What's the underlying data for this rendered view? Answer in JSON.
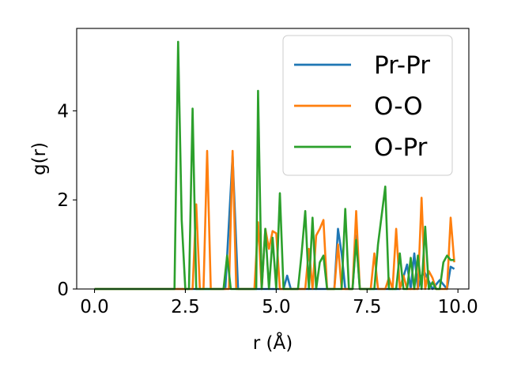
{
  "chart_data": {
    "type": "line",
    "xlabel": "r (Å)",
    "ylabel": "g(r)",
    "xlim": [
      -0.49,
      10.3
    ],
    "ylim": [
      0,
      5.85
    ],
    "xticks": [
      0.0,
      2.5,
      5.0,
      7.5,
      10.0
    ],
    "xtick_labels": [
      "0.0",
      "2.5",
      "5.0",
      "7.5",
      "10.0"
    ],
    "yticks": [
      0,
      2,
      4
    ],
    "ytick_labels": [
      "0",
      "2",
      "4"
    ],
    "grid": false,
    "legend_position": "top-right",
    "series": [
      {
        "name": "Pr-Pr",
        "color": "#1f77b4",
        "x": [
          0.0,
          3.45,
          3.6,
          3.8,
          3.95,
          4.6,
          5.2,
          5.3,
          5.4,
          5.9,
          6.1,
          6.4,
          6.6,
          6.7,
          6.8,
          6.9,
          7.1,
          7.2,
          7.3,
          7.9,
          8.0,
          8.1,
          8.4,
          8.6,
          8.7,
          8.8,
          8.9,
          9.0,
          9.1,
          9.3,
          9.5,
          9.7,
          9.8,
          9.9
        ],
        "y": [
          0.0,
          0.0,
          0.0,
          3.0,
          0.0,
          0.0,
          0.0,
          0.3,
          0.0,
          0.0,
          0.0,
          0.0,
          0.0,
          1.35,
          0.8,
          0.0,
          0.0,
          1.2,
          0.0,
          0.0,
          0.0,
          0.0,
          0.0,
          0.55,
          0.0,
          0.8,
          0.0,
          0.3,
          0.35,
          0.0,
          0.2,
          0.0,
          0.5,
          0.45
        ]
      },
      {
        "name": "O-O",
        "color": "#ff7f0e",
        "x": [
          0.0,
          2.6,
          2.7,
          2.8,
          2.9,
          3.0,
          3.1,
          3.2,
          3.5,
          3.7,
          3.8,
          3.9,
          4.1,
          4.3,
          4.4,
          4.5,
          4.6,
          4.7,
          4.8,
          4.9,
          5.0,
          5.1,
          5.2,
          5.4,
          5.6,
          5.8,
          5.9,
          6.0,
          6.1,
          6.2,
          6.3,
          6.4,
          6.5,
          6.6,
          6.7,
          6.8,
          6.9,
          7.0,
          7.1,
          7.2,
          7.3,
          7.4,
          7.5,
          7.6,
          7.7,
          7.8,
          8.0,
          8.1,
          8.2,
          8.3,
          8.4,
          8.5,
          8.6,
          8.7,
          8.8,
          8.9,
          9.0,
          9.1,
          9.2,
          9.3,
          9.4,
          9.5,
          9.6,
          9.7,
          9.8,
          9.9
        ],
        "y": [
          0.0,
          0.0,
          0.0,
          1.9,
          0.0,
          0.0,
          3.1,
          0.0,
          0.0,
          0.0,
          3.1,
          0.0,
          0.0,
          0.0,
          0.0,
          1.5,
          0.0,
          1.35,
          0.9,
          1.3,
          1.25,
          0.0,
          0.0,
          0.0,
          0.0,
          0.0,
          0.9,
          0.0,
          1.2,
          1.35,
          1.55,
          0.0,
          0.0,
          0.0,
          1.0,
          0.0,
          0.0,
          0.0,
          0.0,
          1.75,
          0.0,
          0.0,
          0.0,
          0.0,
          0.8,
          0.0,
          0.0,
          0.25,
          0.0,
          1.35,
          0.0,
          0.3,
          0.0,
          0.0,
          0.0,
          0.0,
          2.05,
          0.0,
          0.4,
          0.25,
          0.0,
          0.0,
          0.0,
          0.0,
          1.6,
          0.6
        ]
      },
      {
        "name": "O-Pr",
        "color": "#2ca02c",
        "x": [
          0.0,
          2.2,
          2.3,
          2.4,
          2.5,
          2.6,
          2.7,
          2.8,
          3.55,
          3.65,
          3.75,
          3.85,
          4.45,
          4.5,
          4.6,
          4.7,
          4.8,
          4.9,
          5.0,
          5.1,
          5.2,
          5.3,
          5.4,
          5.5,
          5.6,
          5.7,
          5.8,
          5.9,
          6.0,
          6.1,
          6.2,
          6.3,
          6.4,
          6.5,
          6.6,
          6.7,
          6.8,
          6.9,
          7.0,
          7.1,
          7.2,
          7.3,
          7.4,
          7.5,
          7.6,
          7.7,
          7.8,
          8.0,
          8.1,
          8.2,
          8.3,
          8.4,
          8.5,
          8.6,
          8.7,
          8.8,
          8.9,
          9.0,
          9.1,
          9.2,
          9.3,
          9.4,
          9.5,
          9.6,
          9.7,
          9.8,
          9.9
        ],
        "y": [
          0.0,
          0.0,
          5.55,
          1.55,
          0.0,
          0.0,
          4.05,
          0.0,
          0.0,
          0.75,
          0.0,
          0.0,
          0.0,
          4.45,
          0.0,
          1.35,
          0.0,
          1.15,
          0.0,
          2.15,
          0.0,
          0.0,
          0.0,
          0.0,
          0.0,
          0.8,
          1.75,
          0.0,
          1.6,
          0.0,
          0.6,
          0.75,
          0.0,
          0.0,
          0.0,
          0.0,
          0.0,
          1.8,
          0.0,
          0.0,
          1.1,
          0.0,
          0.0,
          0.0,
          0.0,
          0.0,
          1.0,
          2.3,
          0.0,
          0.0,
          0.0,
          0.8,
          0.0,
          0.0,
          0.7,
          0.0,
          0.75,
          0.0,
          1.4,
          0.0,
          0.15,
          0.0,
          0.0,
          0.6,
          0.75,
          0.65,
          0.65
        ]
      }
    ]
  }
}
